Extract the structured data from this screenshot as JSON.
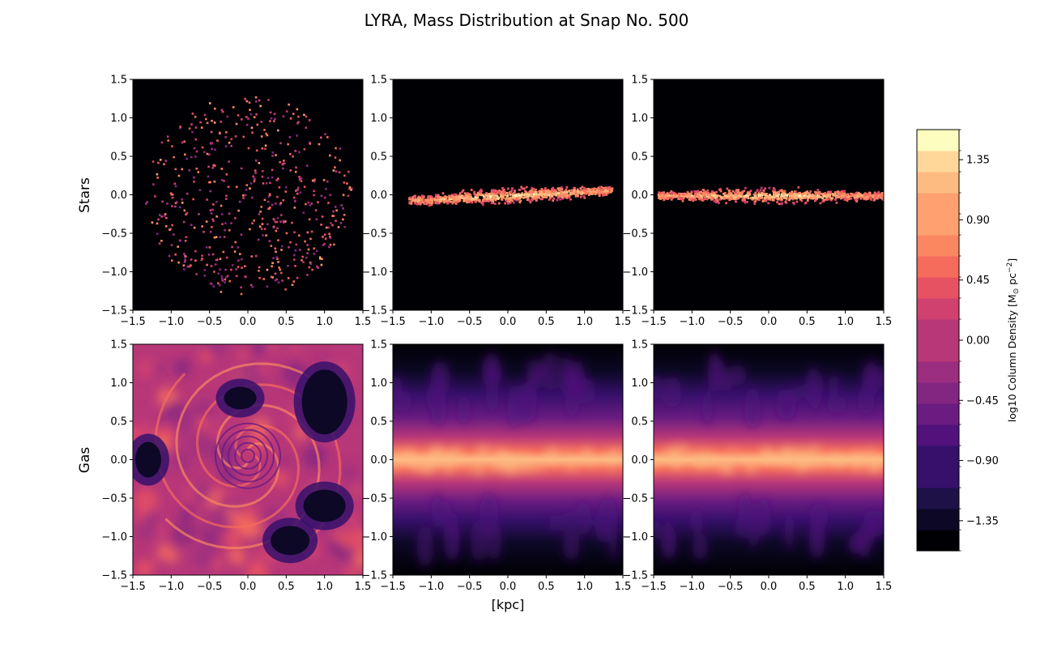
{
  "figure": {
    "title": "LYRA, Mass Distribution at Snap No. 500",
    "xlabel": "[kpc]",
    "row_labels": [
      "Stars",
      "Gas"
    ]
  },
  "chart_data": {
    "type": "heatmap",
    "title": "LYRA, Mass Distribution at Snap No. 500",
    "xlabel": "[kpc]",
    "rows": [
      "Stars",
      "Gas"
    ],
    "panels": [
      {
        "row": "Stars",
        "col": 1,
        "projection": "face-on",
        "xlim": [
          -1.5,
          1.5
        ],
        "ylim": [
          -1.5,
          1.5
        ]
      },
      {
        "row": "Stars",
        "col": 2,
        "projection": "edge-on",
        "xlim": [
          -1.5,
          1.5
        ],
        "ylim": [
          -1.5,
          1.5
        ]
      },
      {
        "row": "Stars",
        "col": 3,
        "projection": "edge-on",
        "xlim": [
          -1.5,
          1.5
        ],
        "ylim": [
          -1.5,
          1.5
        ]
      },
      {
        "row": "Gas",
        "col": 1,
        "projection": "face-on",
        "xlim": [
          -1.5,
          1.5
        ],
        "ylim": [
          -1.5,
          1.5
        ]
      },
      {
        "row": "Gas",
        "col": 2,
        "projection": "edge-on",
        "xlim": [
          -1.5,
          1.5
        ],
        "ylim": [
          -1.5,
          1.5
        ]
      },
      {
        "row": "Gas",
        "col": 3,
        "projection": "edge-on",
        "xlim": [
          -1.5,
          1.5
        ],
        "ylim": [
          -1.5,
          1.5
        ]
      }
    ],
    "xticks": [
      "−1.5",
      "−1.0",
      "−0.5",
      "0.0",
      "0.5",
      "1.0",
      "1.5"
    ],
    "yticks": [
      "1.5",
      "1.0",
      "0.5",
      "0.0",
      "−0.5",
      "−1.0",
      "−1.5"
    ],
    "colorbar": {
      "label": "log10 Column Density [M",
      "label_sun": "⊙",
      "label_tail": " pc",
      "label_sup": "−2",
      "label_close": "]",
      "range": [
        -1.575,
        1.575
      ],
      "n_levels": 20,
      "ticks": [
        "1.35",
        "0.90",
        "0.45",
        "0.00",
        "−0.45",
        "−0.90",
        "−1.35"
      ],
      "tick_values": [
        1.35,
        0.9,
        0.45,
        0.0,
        -0.45,
        -0.9,
        -1.35
      ],
      "colormap": "magma",
      "colors": [
        "#000004",
        "#0c0826",
        "#1d1147",
        "#36106b",
        "#51127c",
        "#6a1c81",
        "#832681",
        "#9c2e7f",
        "#b73779",
        "#d0416f",
        "#e75263",
        "#f56b5c",
        "#fb8761",
        "#fea16e",
        "#febb81",
        "#fed799",
        "#fcfdbf"
      ]
    }
  }
}
